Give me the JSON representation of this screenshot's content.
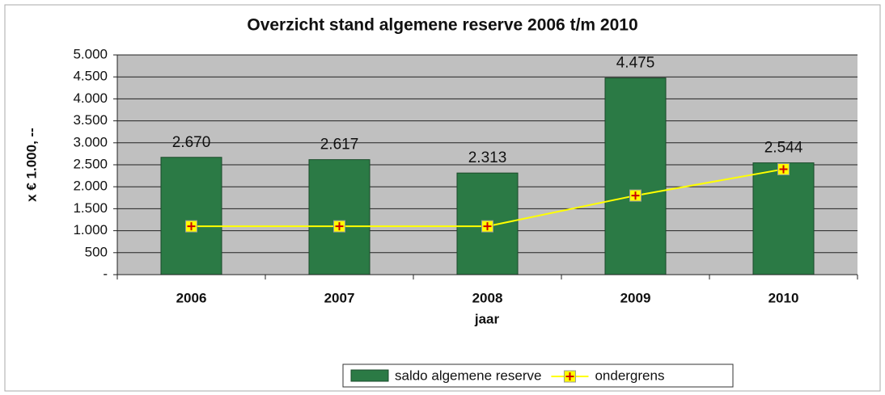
{
  "chart_data": {
    "type": "bar",
    "title": "Overzicht stand algemene reserve 2006 t/m 2010",
    "y_label": "x € 1.000, --",
    "x_label": "jaar",
    "categories": [
      "2006",
      "2007",
      "2008",
      "2009",
      "2010"
    ],
    "series": [
      {
        "name": "saldo algemene reserve",
        "type": "bar",
        "color": "#2b7a45",
        "values": [
          2670,
          2617,
          2313,
          4475,
          2544
        ],
        "value_labels": [
          "2.670",
          "2.617",
          "2.313",
          "4.475",
          "2.544"
        ]
      },
      {
        "name": "ondergrens",
        "type": "line",
        "color": "#ffff00",
        "values": [
          1100,
          1100,
          1100,
          1800,
          2400
        ]
      }
    ],
    "ylim": [
      0,
      5000
    ],
    "yticks": [
      {
        "value": 0,
        "label": "-"
      },
      500,
      {
        "value": 1000,
        "label": "1.000"
      },
      {
        "value": 1500,
        "label": "1.500"
      },
      {
        "value": 2000,
        "label": "2.000"
      },
      {
        "value": 2500,
        "label": "2.500"
      },
      {
        "value": 3000,
        "label": "3.000"
      },
      {
        "value": 3500,
        "label": "3.500"
      },
      {
        "value": 4000,
        "label": "4.000"
      },
      {
        "value": 4500,
        "label": "4.500"
      },
      {
        "value": 5000,
        "label": "5.000"
      }
    ],
    "grid": true,
    "legend": "bottom"
  }
}
